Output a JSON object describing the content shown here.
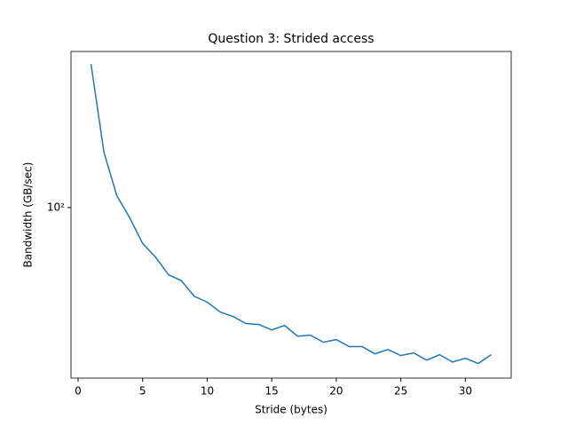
{
  "chart_data": {
    "type": "line",
    "title": "Question 3: Strided access",
    "x_label": "Stride (bytes)",
    "y_label": "Bandwidth (GB/sec)",
    "x": [
      1,
      2,
      3,
      4,
      5,
      6,
      7,
      8,
      9,
      10,
      11,
      12,
      13,
      14,
      15,
      16,
      17,
      18,
      19,
      20,
      21,
      22,
      23,
      24,
      25,
      26,
      27,
      28,
      29,
      30,
      31,
      32
    ],
    "series": [
      {
        "name": "Bandwidth",
        "color": "#1f77b4",
        "values": [
          441,
          177,
          113,
          90,
          69,
          60,
          50,
          47,
          40,
          37.7,
          34,
          32.5,
          30.2,
          29.9,
          28.3,
          29.6,
          26.5,
          26.8,
          24.9,
          25.6,
          23.8,
          23.8,
          22.1,
          23.1,
          21.7,
          22.3,
          20.7,
          21.9,
          20.3,
          21.1,
          20.0,
          21.9
        ]
      }
    ],
    "xlim": [
      -0.55,
      33.55
    ],
    "xticks": [
      0,
      5,
      10,
      15,
      20,
      25,
      30
    ],
    "ylim": [
      17.2,
      501
    ],
    "yticks": [
      {
        "value": 100,
        "label": "10²"
      }
    ],
    "yscale": "log",
    "grid": false
  }
}
